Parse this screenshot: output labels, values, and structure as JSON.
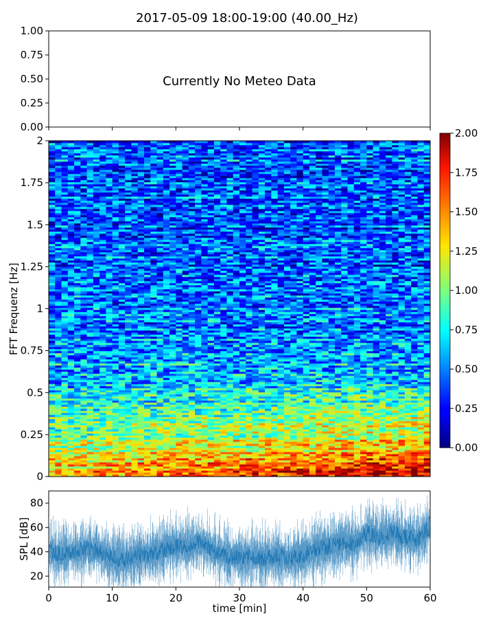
{
  "figure": {
    "title": "2017-05-09 18:00-19:00 (40.00_Hz)"
  },
  "chart_data": [
    {
      "type": "line",
      "panel": "meteo",
      "annotation": "Currently No Meteo Data",
      "ylim": [
        0,
        1
      ],
      "yticks": [
        "0.00",
        "0.25",
        "0.50",
        "0.75",
        "1.00"
      ],
      "xlim": [
        0,
        60
      ],
      "x_ticklabels_visible": false,
      "series": []
    },
    {
      "type": "heatmap",
      "panel": "spectrogram",
      "ylabel": "FFT Frequenz [Hz]",
      "ylim": [
        0,
        2
      ],
      "yticks": [
        "0",
        "0.25",
        "0.5",
        "0.75",
        "1",
        "1.25",
        "1.5",
        "1.75",
        "2"
      ],
      "xlim": [
        0,
        60
      ],
      "colormap": "jet",
      "colorbar": {
        "range": [
          0,
          2
        ],
        "ticks": [
          "0.00",
          "0.25",
          "0.50",
          "0.75",
          "1.00",
          "1.25",
          "1.50",
          "1.75",
          "2.00"
        ]
      },
      "approx_mean_level_by_frequency": [
        {
          "freq_hz": 0.0,
          "level": 1.45
        },
        {
          "freq_hz": 0.25,
          "level": 0.95
        },
        {
          "freq_hz": 0.5,
          "level": 0.7
        },
        {
          "freq_hz": 0.75,
          "level": 0.55
        },
        {
          "freq_hz": 1.0,
          "level": 0.5
        },
        {
          "freq_hz": 1.5,
          "level": 0.4
        },
        {
          "freq_hz": 2.0,
          "level": 0.45
        }
      ]
    },
    {
      "type": "line",
      "panel": "spl",
      "xlabel": "time [min]",
      "ylabel": "SPL [dB]",
      "xlim": [
        0,
        60
      ],
      "ylim": [
        11,
        90
      ],
      "xticks": [
        "0",
        "10",
        "20",
        "30",
        "40",
        "50",
        "60"
      ],
      "yticks": [
        "20",
        "40",
        "60",
        "80"
      ],
      "color": "#1f77b4",
      "x": [
        0,
        2,
        4,
        6,
        8,
        10,
        12,
        14,
        16,
        18,
        20,
        22,
        24,
        26,
        28,
        30,
        32,
        34,
        36,
        38,
        40,
        42,
        44,
        46,
        48,
        50,
        52,
        54,
        56,
        58,
        60
      ],
      "y": [
        40,
        38,
        40,
        42,
        40,
        35,
        33,
        37,
        38,
        42,
        45,
        44,
        48,
        40,
        37,
        35,
        36,
        35,
        36,
        35,
        38,
        42,
        44,
        48,
        46,
        55,
        52,
        56,
        52,
        50,
        60
      ]
    }
  ]
}
